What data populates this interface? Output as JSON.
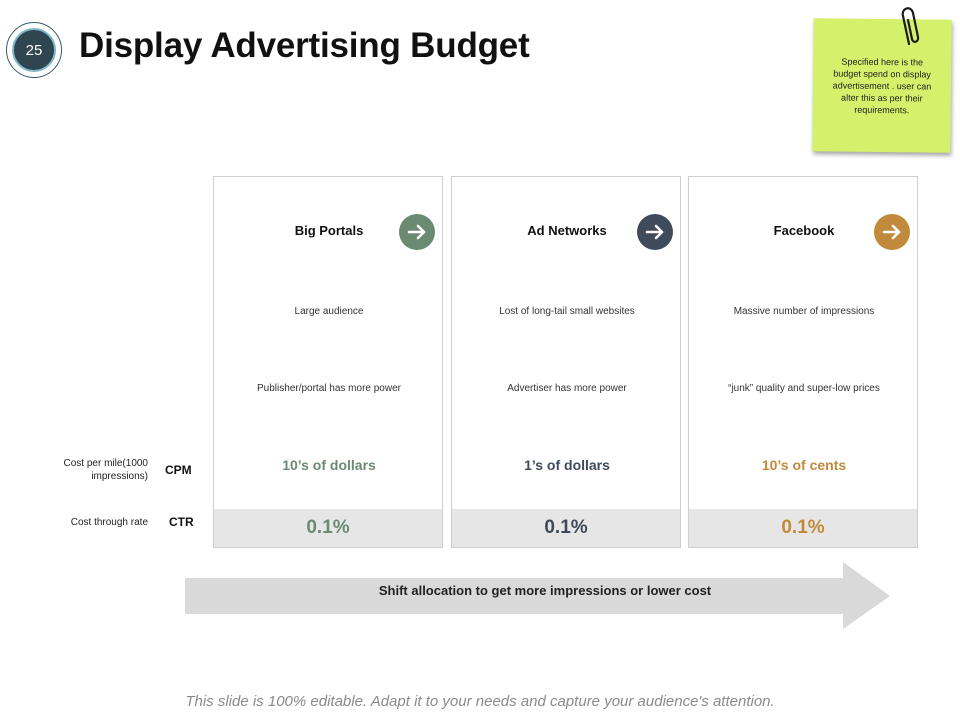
{
  "slide": {
    "number": "25",
    "title": "Display Advertising Budget"
  },
  "sticky_note": {
    "text": "Specified here is the budget spend on display advertisement . user can alter this as per their requirements."
  },
  "colors": {
    "green": "#6b8a72",
    "navy": "#3f4a5a",
    "gold": "#c08a3a"
  },
  "row_labels": {
    "cpm_label": "Cost per mile(1000 impressions)",
    "cpm_abbr": "CPM",
    "ctr_label": "Cost through rate",
    "ctr_abbr": "CTR"
  },
  "columns": [
    {
      "title": "Big Portals",
      "icon": "arrow-right-icon",
      "point1": "Large audience",
      "point2": "Publisher/portal has more power",
      "cpm": "10’s of dollars",
      "ctr": "0.1%"
    },
    {
      "title": "Ad Networks",
      "icon": "arrow-right-icon",
      "point1": "Lost of long-tail small websites",
      "point2": "Advertiser has more power",
      "cpm": "1’s of dollars",
      "ctr": "0.1%"
    },
    {
      "title": "Facebook",
      "icon": "arrow-right-icon",
      "point1": "Massive number of impressions",
      "point2": "“junk” quality and super-low prices",
      "cpm": "10’s of cents",
      "ctr": "0.1%"
    }
  ],
  "shift_arrow": {
    "label": "Shift allocation to get more impressions or lower cost"
  },
  "footer": {
    "text": "This slide is 100% editable. Adapt it to your needs and capture your audience's attention."
  }
}
